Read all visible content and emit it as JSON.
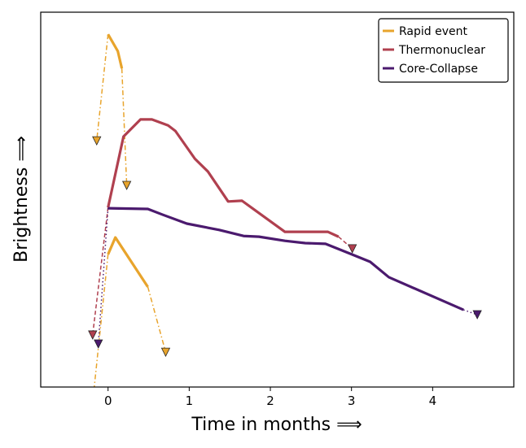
{
  "chart_data": {
    "type": "line",
    "title": "",
    "xlabel": "Time in months ⟹",
    "ylabel": "Brightness ⟹",
    "xlim": [
      -0.83,
      5.0
    ],
    "ylim": [
      0,
      100
    ],
    "y_ticks_shown": false,
    "xticks": [
      0,
      1,
      2,
      3,
      4
    ],
    "xtick_labels": [
      "0",
      "1",
      "2",
      "3",
      "4"
    ],
    "grid": false,
    "legend_position": "top-right",
    "series": [
      {
        "name": "Rapid event",
        "color": "#e8a42c",
        "segments": [
          {
            "x": [
              0,
              0.12,
              0.17
            ],
            "y": [
              94.1,
              89.6,
              85.0
            ]
          },
          {
            "x": [
              0,
              0.09,
              0.49
            ],
            "y": [
              35.4,
              39.9,
              26.7
            ]
          }
        ],
        "limit_style": "dashdot",
        "upper_limits": [
          {
            "from": [
              0,
              94.1
            ],
            "to": [
              -0.14,
              65.7
            ],
            "marker": true
          },
          {
            "from": [
              0.17,
              85.0
            ],
            "to": [
              0.23,
              53.8
            ],
            "marker": true
          },
          {
            "from": [
              0.49,
              26.7
            ],
            "to": [
              0.71,
              9.3
            ],
            "marker": true
          },
          {
            "from": [
              0,
              35.4
            ],
            "to": [
              -0.17,
              0
            ],
            "marker": false
          }
        ]
      },
      {
        "name": "Thermonuclear",
        "color": "#b0404f",
        "segments": [
          {
            "x": [
              0,
              0.19,
              0.4,
              0.54,
              0.74,
              0.83,
              1.07,
              1.23,
              1.48,
              1.65,
              2.18,
              2.71,
              2.84
            ],
            "y": [
              47.9,
              66.8,
              71.4,
              71.4,
              69.8,
              68.3,
              60.9,
              57.5,
              49.5,
              49.7,
              41.4,
              41.4,
              40.1
            ]
          }
        ],
        "limit_style": "dashed",
        "upper_limits": [
          {
            "from": [
              0,
              47.9
            ],
            "to": [
              -0.19,
              13.9
            ],
            "marker": true
          },
          {
            "from": [
              2.84,
              40.1
            ],
            "to": [
              3.01,
              36.9
            ],
            "marker": true
          }
        ]
      },
      {
        "name": "Core-Collapse",
        "color": "#4b1a6e",
        "segments": [
          {
            "x": [
              0,
              0.49,
              0.67,
              0.97,
              1.37,
              1.67,
              1.86,
              2.18,
              2.43,
              2.68,
              2.98,
              3.23,
              3.46,
              4.38
            ],
            "y": [
              47.7,
              47.5,
              46.0,
              43.6,
              41.9,
              40.3,
              40.1,
              39.0,
              38.4,
              38.2,
              35.6,
              33.4,
              29.3,
              20.6
            ]
          }
        ],
        "limit_style": "dotted",
        "upper_limits": [
          {
            "from": [
              0,
              47.7
            ],
            "to": [
              -0.12,
              11.5
            ],
            "marker": true
          },
          {
            "from": [
              4.38,
              20.6
            ],
            "to": [
              4.55,
              19.3
            ],
            "marker": true
          }
        ]
      }
    ]
  }
}
